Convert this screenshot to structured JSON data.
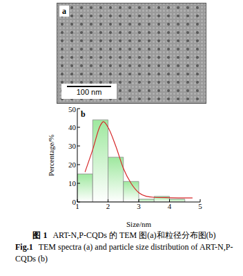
{
  "panel_a": {
    "label": "a",
    "scale_bar": "100 nm"
  },
  "chart_data": {
    "type": "histogram",
    "panel_label": "b",
    "bins": [
      1,
      1.5,
      2,
      2.5,
      3,
      3.5,
      4,
      4.5
    ],
    "values": [
      15,
      44,
      24,
      11,
      1.5,
      3,
      1.5
    ],
    "color": "#9ee89e",
    "fit": {
      "color": "#d62728",
      "x": [
        1.25,
        1.5,
        1.75,
        1.85,
        2.0,
        2.25,
        2.5,
        2.75,
        3.0,
        3.25,
        3.5,
        4.0,
        4.5,
        4.75
      ],
      "values": [
        16,
        28,
        41,
        43,
        40,
        30,
        18,
        10,
        5,
        3,
        2.5,
        2.3,
        2.2,
        2.2
      ]
    },
    "x_label": "Size/nm",
    "y_label": "Percentage/%",
    "xlim": [
      1,
      5
    ],
    "xticks": [
      1,
      2,
      3,
      4,
      5
    ],
    "ylim": [
      0,
      50
    ],
    "yticks": [
      0,
      10,
      20,
      30,
      40,
      50
    ]
  },
  "caption": {
    "zh": {
      "label": "图 1",
      "text": "ART-N,P-CQDs 的 TEM 图(a)和粒径分布图(b)"
    },
    "en": {
      "label": "Fig.1",
      "text": "TEM spectra (a) and particle size distribution of ART-N,P-CQDs (b)"
    }
  }
}
